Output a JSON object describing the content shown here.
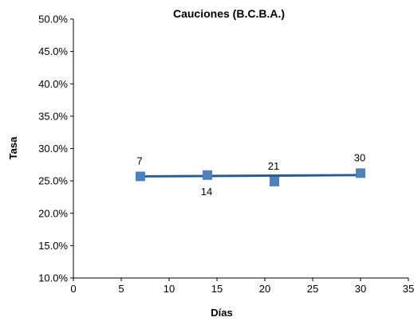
{
  "chart_data": {
    "type": "scatter",
    "title": "Cauciones (B.C.B.A.)",
    "xlabel": "Días",
    "ylabel": "Tasa",
    "xlim": [
      0,
      35
    ],
    "ylim": [
      10,
      50
    ],
    "x_ticks": [
      "0",
      "5",
      "10",
      "15",
      "20",
      "25",
      "30",
      "35"
    ],
    "y_ticks": [
      "10.0%",
      "15.0%",
      "20.0%",
      "25.0%",
      "30.0%",
      "35.0%",
      "40.0%",
      "45.0%",
      "50.0%"
    ],
    "grid": false,
    "legend": "none",
    "series": [
      {
        "points": [
          {
            "x": 7,
            "y": 25.7,
            "label": "7",
            "label_pos": "above"
          },
          {
            "x": 14,
            "y": 25.9,
            "label": "14",
            "label_pos": "below"
          },
          {
            "x": 21,
            "y": 24.9,
            "label": "21",
            "label_pos": "above"
          },
          {
            "x": 30,
            "y": 26.2,
            "label": "30",
            "label_pos": "above"
          }
        ],
        "marker": "square",
        "color": "#4f81bd"
      }
    ],
    "trendline": {
      "x_start": 7,
      "x_end": 30,
      "y_start": 25.7,
      "y_end": 25.9,
      "color": "#2f5a8a"
    }
  }
}
